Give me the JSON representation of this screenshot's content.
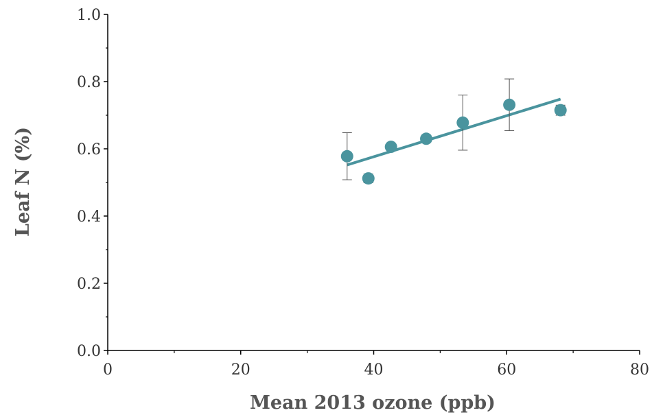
{
  "chart_data": {
    "type": "scatter",
    "title": "",
    "xlabel": "Mean 2013 ozone (ppb)",
    "ylabel": "Leaf N (%)",
    "xlim": [
      0,
      80
    ],
    "ylim": [
      0,
      1.0
    ],
    "x_ticks": [
      "0",
      "20",
      "40",
      "60",
      "80"
    ],
    "y_ticks": [
      "0.0",
      "0.2",
      "0.4",
      "0.6",
      "0.8",
      "1.0"
    ],
    "grid": false,
    "legend": "none",
    "series": [
      {
        "x": [
          36.0,
          39.2,
          42.6,
          47.9,
          53.4,
          60.4,
          68.1
        ],
        "y": [
          0.578,
          0.512,
          0.606,
          0.63,
          0.678,
          0.731,
          0.715
        ],
        "error": [
          0.07,
          0.013,
          0.008,
          0.005,
          0.082,
          0.077,
          0.015
        ]
      }
    ],
    "trendline": {
      "x": [
        36.0,
        68.1
      ],
      "y": [
        0.552,
        0.748
      ]
    },
    "colors": {
      "marker": "#4a949e",
      "trendline": "#4a949e",
      "error_bar": "#555555",
      "axis": "#000000"
    }
  }
}
